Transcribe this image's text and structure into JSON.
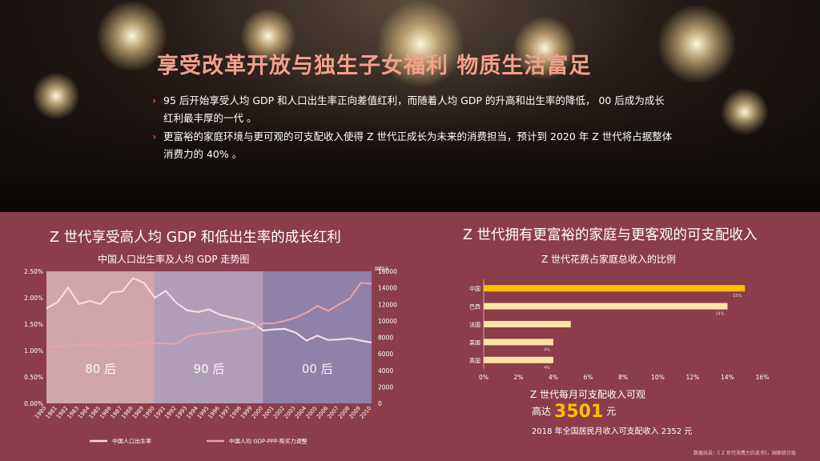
{
  "hero": {
    "title": "享受改革开放与独生子女福利 物质生活富足",
    "bullets": [
      "95 后开始享受人均 GDP 和人口出生率正向差值红利，而随着人均 GDP 的升高和出生率的降低， 00 后成为成长红利最丰厚的一代 。",
      "更富裕的家庭环境与更可观的可支配收入使得 Z 世代正成长为未来的消费担当，预计到 2020 年 Z 世代将占据整体消费力的 40% 。"
    ],
    "bullet_icon": "chevron-right-icon",
    "colors": {
      "title": "#f3a08c",
      "arrow": "#e5543a"
    }
  },
  "left": {
    "title": "Z 世代享受高人均 GDP 和低出生率的成长红利",
    "subtitle": "中国人口出生率及人均 GDP 走势图"
  },
  "right": {
    "title": "Z 世代拥有更富裕的家庭与更客观的可支配收入",
    "subtitle": "Z 世代花费占家庭总收入的比例",
    "income_label": "Z 世代每月可支配收入可观",
    "income_prefix": "高达",
    "income_value": "3501",
    "income_unit": "元",
    "income_note": "2018 年全国居民月收入可支配收入 2352 元",
    "source": "数据出自：《 Z 世代消费力白皮书》，国家统计局"
  },
  "chart_data": [
    {
      "type": "line",
      "title": "中国人口出生率及人均 GDP 走势图",
      "x": [
        "1980",
        "1981",
        "1982",
        "1983",
        "1984",
        "1985",
        "1986",
        "1987",
        "1988",
        "1989",
        "1990",
        "1991",
        "1992",
        "1993",
        "1994",
        "1995",
        "1996",
        "1997",
        "1998",
        "1999",
        "2000",
        "2001",
        "2002",
        "2003",
        "2004",
        "2005",
        "2006",
        "2007",
        "2008",
        "2009",
        "2010"
      ],
      "y_left": {
        "range": [
          0,
          0.025
        ],
        "ticks": [
          "0.00%",
          "0.50%",
          "1.00%",
          "1.50%",
          "2.00%",
          "2.50%"
        ]
      },
      "y_right": {
        "range": [
          0,
          16000
        ],
        "ticks": [
          "0",
          "2000",
          "4000",
          "6000",
          "8000",
          "10000",
          "12000",
          "14000",
          "16000"
        ],
        "unit": "国际元"
      },
      "series": [
        {
          "name": "中国人口出生率",
          "axis": "left",
          "color": "#f7dde2",
          "values": [
            0.018,
            0.0191,
            0.0219,
            0.0188,
            0.0194,
            0.0188,
            0.021,
            0.0212,
            0.0237,
            0.0228,
            0.02,
            0.0213,
            0.019,
            0.0176,
            0.0173,
            0.0178,
            0.0168,
            0.0163,
            0.0158,
            0.0152,
            0.0138,
            0.014,
            0.0141,
            0.0134,
            0.0119,
            0.0128,
            0.012,
            0.0121,
            0.0123,
            0.0119,
            0.0115
          ]
        },
        {
          "name": "中国人均 GDP-PPP-购买力调整",
          "axis": "right",
          "color": "#e8a2ab",
          "values": [
            6800,
            6900,
            7000,
            7100,
            7150,
            7200,
            7200,
            7150,
            7200,
            7300,
            7300,
            7250,
            7200,
            8100,
            8400,
            8500,
            8700,
            8800,
            9000,
            9200,
            9700,
            9700,
            10000,
            10400,
            11000,
            11800,
            11200,
            12000,
            12700,
            14600,
            14500
          ]
        }
      ],
      "bands": [
        {
          "label": "80 后",
          "from": "1980",
          "to": "1990",
          "color": "#d9b8bd"
        },
        {
          "label": "90 后",
          "from": "1990",
          "to": "2000",
          "color": "#b8aecb"
        },
        {
          "label": "00 后",
          "from": "2000",
          "to": "2010",
          "color": "#8f8db8"
        }
      ],
      "legend": "bottom"
    },
    {
      "type": "bar",
      "orientation": "horizontal",
      "title": "Z 世代花费占家庭总收入的比例",
      "categories": [
        "中国",
        "巴西",
        "法国",
        "美国",
        "英国"
      ],
      "values": [
        0.15,
        0.14,
        0.05,
        0.04,
        0.04
      ],
      "value_labels": [
        "15%",
        "14%",
        "",
        "4%",
        "4%"
      ],
      "colors": [
        "#ffc000",
        "#fbe3a6",
        "#fbe3a6",
        "#fbe3a6",
        "#fbe3a6"
      ],
      "xlim": [
        0,
        0.16
      ],
      "x_ticks": [
        "0%",
        "2%",
        "4%",
        "6%",
        "8%",
        "10%",
        "12%",
        "14%",
        "16%"
      ]
    }
  ]
}
